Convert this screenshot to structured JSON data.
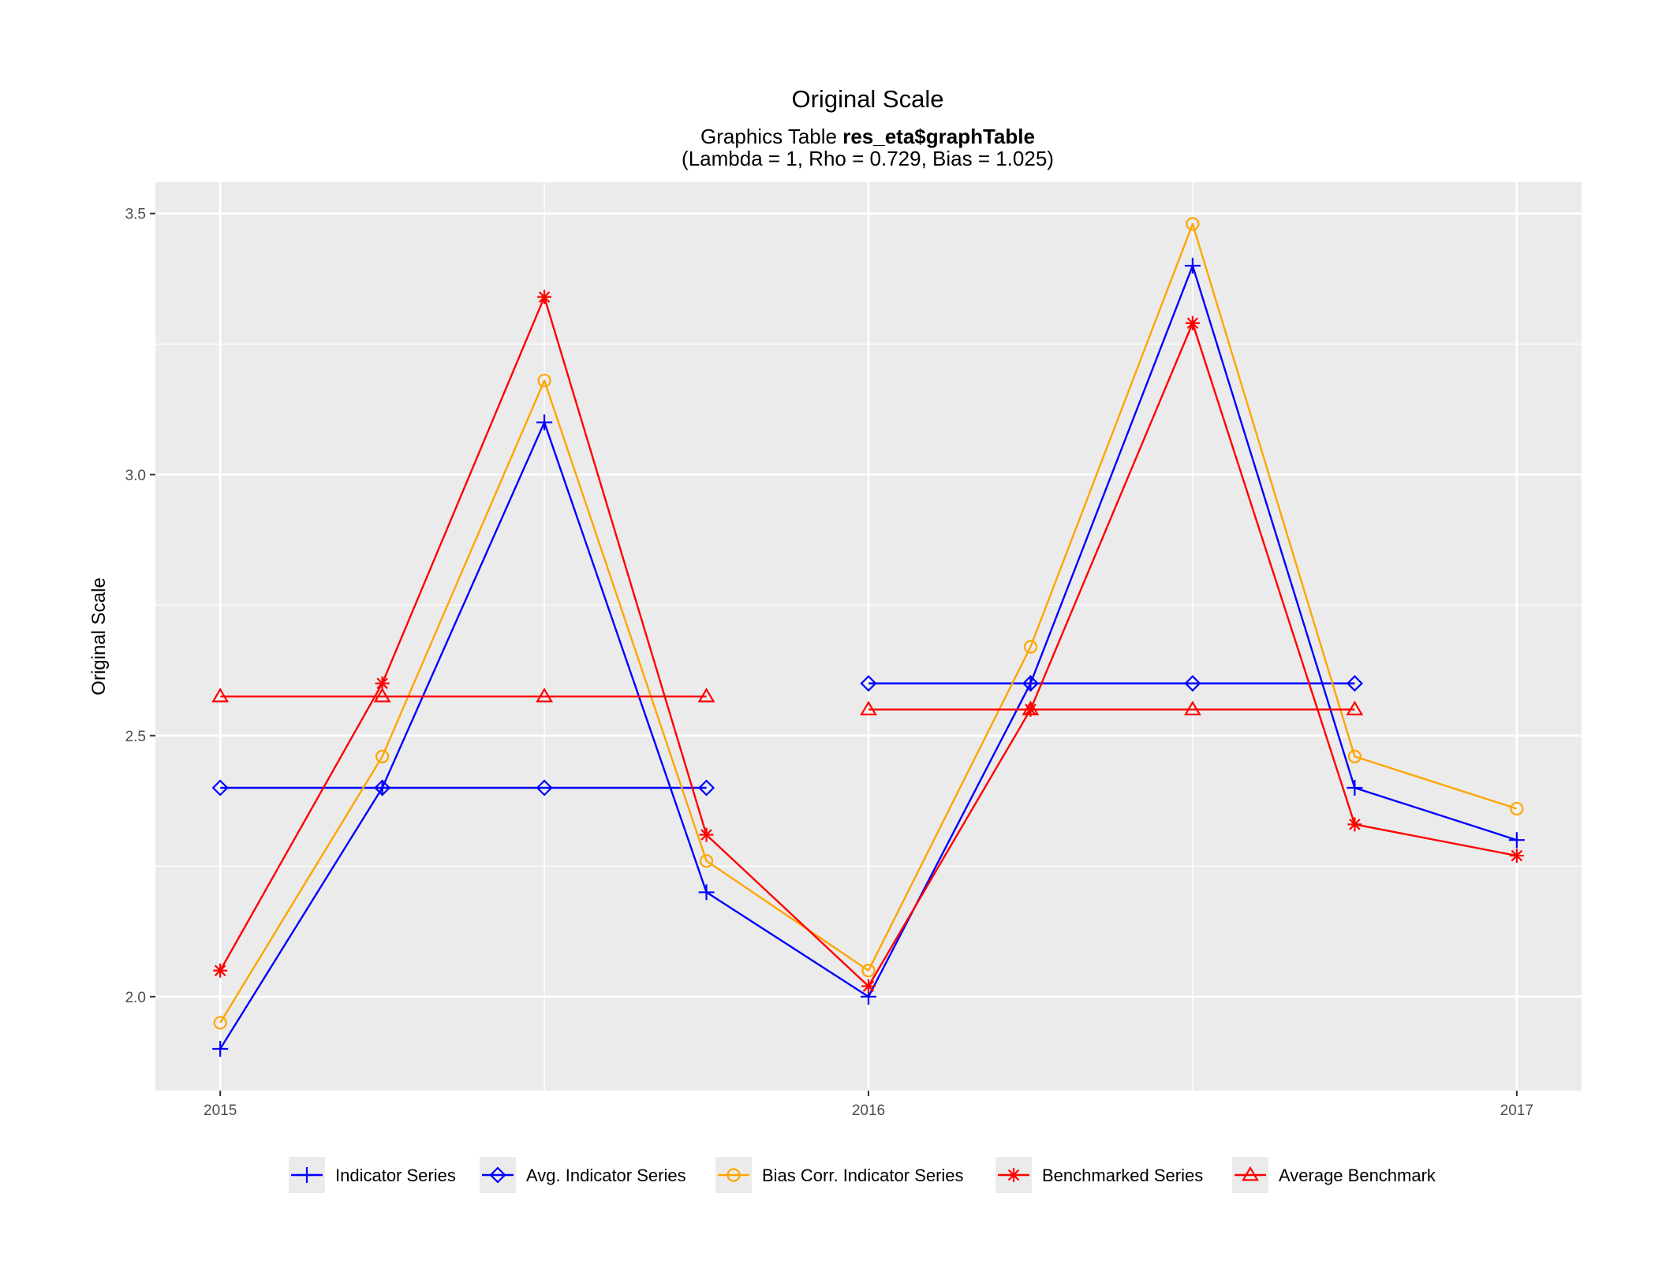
{
  "colors": {
    "panel": "#ebebeb",
    "grid": "#ffffff",
    "indicator": "#0000ff",
    "avg_indicator": "#0000ff",
    "bias_corr": "#ffa500",
    "benchmarked": "#ff0000",
    "avg_benchmark": "#ff0000"
  },
  "chart_data": {
    "type": "line",
    "title": "Original Scale",
    "subtitle_prefix": "Graphics Table ",
    "subtitle_bold": "res_eta$graphTable",
    "subtitle_line2": "(Lambda = 1, Rho = 0.729, Bias = 1.025)",
    "xlabel": "",
    "ylabel": "Original Scale",
    "xlim": [
      2014.9,
      2017.1
    ],
    "ylim": [
      1.82,
      3.56
    ],
    "x_ticks": [
      2015,
      2016,
      2017
    ],
    "x_tick_labels": [
      "2015",
      "2016",
      "2017"
    ],
    "y_ticks": [
      2.0,
      2.5,
      3.0,
      3.5
    ],
    "y_tick_labels": [
      "2.0",
      "2.5",
      "3.0",
      "3.5"
    ],
    "grid": true,
    "legend_position": "bottom",
    "series": [
      {
        "name": "Indicator Series",
        "color": "#0000ff",
        "marker": "plus",
        "segments": [
          {
            "x": [
              2015.0,
              2015.25,
              2015.5,
              2015.75,
              2016.0,
              2016.25,
              2016.5,
              2016.75,
              2017.0
            ],
            "y": [
              1.9,
              2.4,
              3.1,
              2.2,
              2.0,
              2.6,
              3.4,
              2.4,
              2.3
            ]
          }
        ]
      },
      {
        "name": "Avg. Indicator Series",
        "color": "#0000ff",
        "marker": "diamond",
        "segments": [
          {
            "x": [
              2015.0,
              2015.25,
              2015.5,
              2015.75
            ],
            "y": [
              2.4,
              2.4,
              2.4,
              2.4
            ]
          },
          {
            "x": [
              2016.0,
              2016.25,
              2016.5,
              2016.75
            ],
            "y": [
              2.6,
              2.6,
              2.6,
              2.6
            ]
          }
        ]
      },
      {
        "name": "Bias Corr. Indicator Series",
        "color": "#ffa500",
        "marker": "circle",
        "segments": [
          {
            "x": [
              2015.0,
              2015.25,
              2015.5,
              2015.75,
              2016.0,
              2016.25,
              2016.5,
              2016.75,
              2017.0
            ],
            "y": [
              1.95,
              2.46,
              3.18,
              2.26,
              2.05,
              2.67,
              3.48,
              2.46,
              2.36
            ]
          }
        ]
      },
      {
        "name": "Benchmarked Series",
        "color": "#ff0000",
        "marker": "star",
        "segments": [
          {
            "x": [
              2015.0,
              2015.25,
              2015.5,
              2015.75,
              2016.0,
              2016.25,
              2016.5,
              2016.75,
              2017.0
            ],
            "y": [
              2.05,
              2.6,
              3.34,
              2.31,
              2.02,
              2.55,
              3.29,
              2.33,
              2.27
            ]
          }
        ]
      },
      {
        "name": "Average Benchmark",
        "color": "#ff0000",
        "marker": "triangle",
        "segments": [
          {
            "x": [
              2015.0,
              2015.25,
              2015.5,
              2015.75
            ],
            "y": [
              2.575,
              2.575,
              2.575,
              2.575
            ]
          },
          {
            "x": [
              2016.0,
              2016.25,
              2016.5,
              2016.75
            ],
            "y": [
              2.55,
              2.55,
              2.55,
              2.55
            ]
          }
        ]
      }
    ]
  }
}
